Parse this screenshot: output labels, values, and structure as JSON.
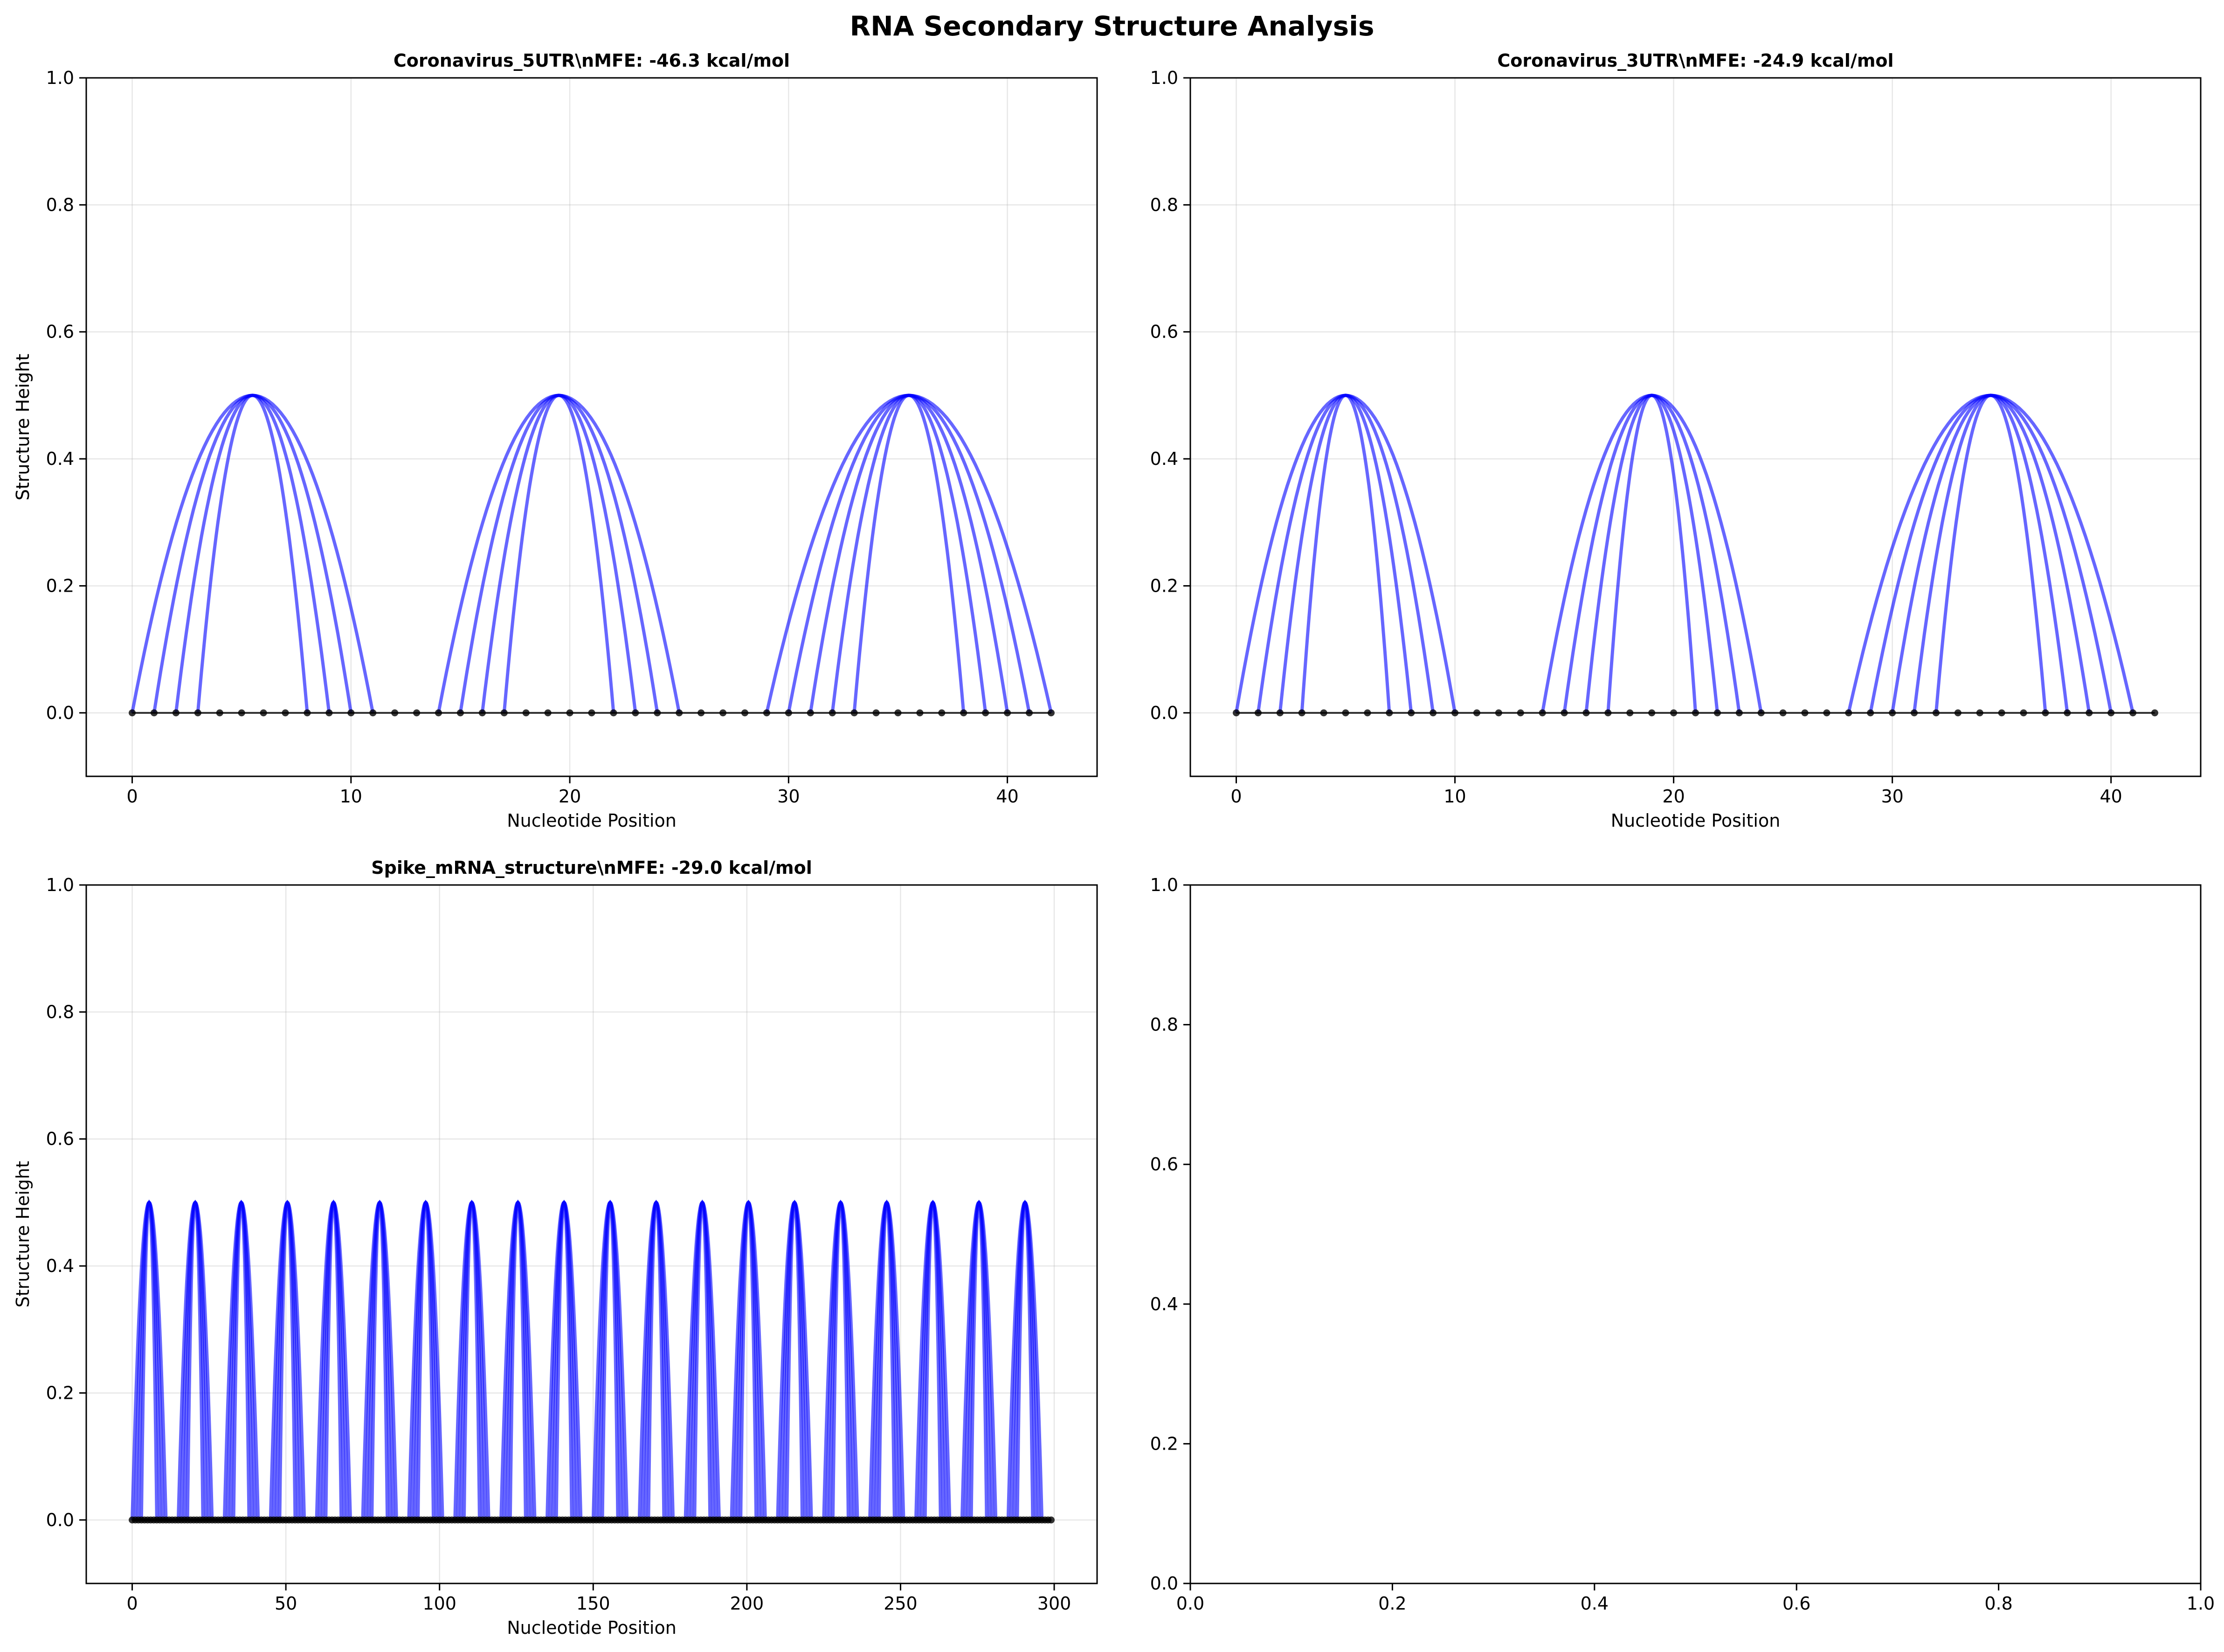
{
  "figure": {
    "suptitle": "RNA Secondary Structure Analysis"
  },
  "style": {
    "arc_color": "#0000ff",
    "nucleotide_color": "#000000",
    "backbone_color": "#000000",
    "grid_color": "#b0b0b0"
  },
  "chart_data": [
    {
      "type": "line",
      "title": "Coronavirus_5UTR\\nMFE: -46.3 kcal/mol",
      "xlabel": "Nucleotide Position",
      "ylabel": "Structure Height",
      "xlim": [
        -2.1,
        44.1
      ],
      "ylim": [
        -0.1,
        1.0
      ],
      "xticks": [
        "0",
        "10",
        "20",
        "30",
        "40"
      ],
      "xtick_values": [
        0,
        10,
        20,
        30,
        40
      ],
      "yticks": [
        "0.0",
        "0.2",
        "0.4",
        "0.6",
        "0.8",
        "1.0"
      ],
      "ytick_values": [
        0,
        0.2,
        0.4,
        0.6,
        0.8,
        1.0
      ],
      "grid": true,
      "arc_height": 0.5,
      "length": 43,
      "pairs": [
        [
          0,
          11
        ],
        [
          1,
          10
        ],
        [
          2,
          9
        ],
        [
          3,
          8
        ],
        [
          14,
          25
        ],
        [
          15,
          24
        ],
        [
          16,
          23
        ],
        [
          17,
          22
        ],
        [
          29,
          42
        ],
        [
          30,
          41
        ],
        [
          31,
          40
        ],
        [
          32,
          39
        ],
        [
          33,
          38
        ]
      ]
    },
    {
      "type": "line",
      "title": "Coronavirus_3UTR\\nMFE: -24.9 kcal/mol",
      "xlabel": "Nucleotide Position",
      "ylabel": "Structure Height",
      "xlim": [
        -2.1,
        44.1
      ],
      "ylim": [
        -0.1,
        1.0
      ],
      "xticks": [
        "0",
        "10",
        "20",
        "30",
        "40"
      ],
      "xtick_values": [
        0,
        10,
        20,
        30,
        40
      ],
      "yticks": [
        "0.0",
        "0.2",
        "0.4",
        "0.6",
        "0.8",
        "1.0"
      ],
      "ytick_values": [
        0,
        0.2,
        0.4,
        0.6,
        0.8,
        1.0
      ],
      "grid": true,
      "arc_height": 0.5,
      "length": 43,
      "pairs": [
        [
          0,
          10
        ],
        [
          1,
          9
        ],
        [
          2,
          8
        ],
        [
          3,
          7
        ],
        [
          14,
          24
        ],
        [
          15,
          23
        ],
        [
          16,
          22
        ],
        [
          17,
          21
        ],
        [
          28,
          41
        ],
        [
          29,
          40
        ],
        [
          30,
          39
        ],
        [
          31,
          38
        ],
        [
          32,
          37
        ]
      ]
    },
    {
      "type": "line",
      "title": "Spike_mRNA_structure\\nMFE: -29.0 kcal/mol",
      "xlabel": "Nucleotide Position",
      "ylabel": "Structure Height",
      "xlim": [
        -14.95,
        313.95
      ],
      "ylim": [
        -0.1,
        1.0
      ],
      "xticks": [
        "0",
        "50",
        "100",
        "150",
        "200",
        "250",
        "300"
      ],
      "xtick_values": [
        0,
        50,
        100,
        150,
        200,
        250,
        300
      ],
      "yticks": [
        "0.0",
        "0.2",
        "0.4",
        "0.6",
        "0.8",
        "1.0"
      ],
      "ytick_values": [
        0,
        0.2,
        0.4,
        0.6,
        0.8,
        1.0
      ],
      "grid": true,
      "arc_height": 0.5,
      "length": 300,
      "hairpin_starts": [
        0,
        15,
        30,
        45,
        60,
        75,
        90,
        105,
        120,
        135,
        150,
        165,
        180,
        195,
        210,
        225,
        240,
        255,
        270,
        285
      ],
      "hairpin_pairs": [
        [
          0,
          11
        ],
        [
          1,
          10
        ],
        [
          2,
          9
        ],
        [
          3,
          8
        ]
      ]
    },
    {
      "type": "line",
      "title": "",
      "xlabel": "",
      "ylabel": "",
      "xlim": [
        0,
        1
      ],
      "ylim": [
        0,
        1
      ],
      "xticks": [
        "0.0",
        "0.2",
        "0.4",
        "0.6",
        "0.8",
        "1.0"
      ],
      "xtick_values": [
        0,
        0.2,
        0.4,
        0.6,
        0.8,
        1.0
      ],
      "yticks": [
        "0.0",
        "0.2",
        "0.4",
        "0.6",
        "0.8",
        "1.0"
      ],
      "ytick_values": [
        0,
        0.2,
        0.4,
        0.6,
        0.8,
        1.0
      ],
      "grid": false
    }
  ]
}
